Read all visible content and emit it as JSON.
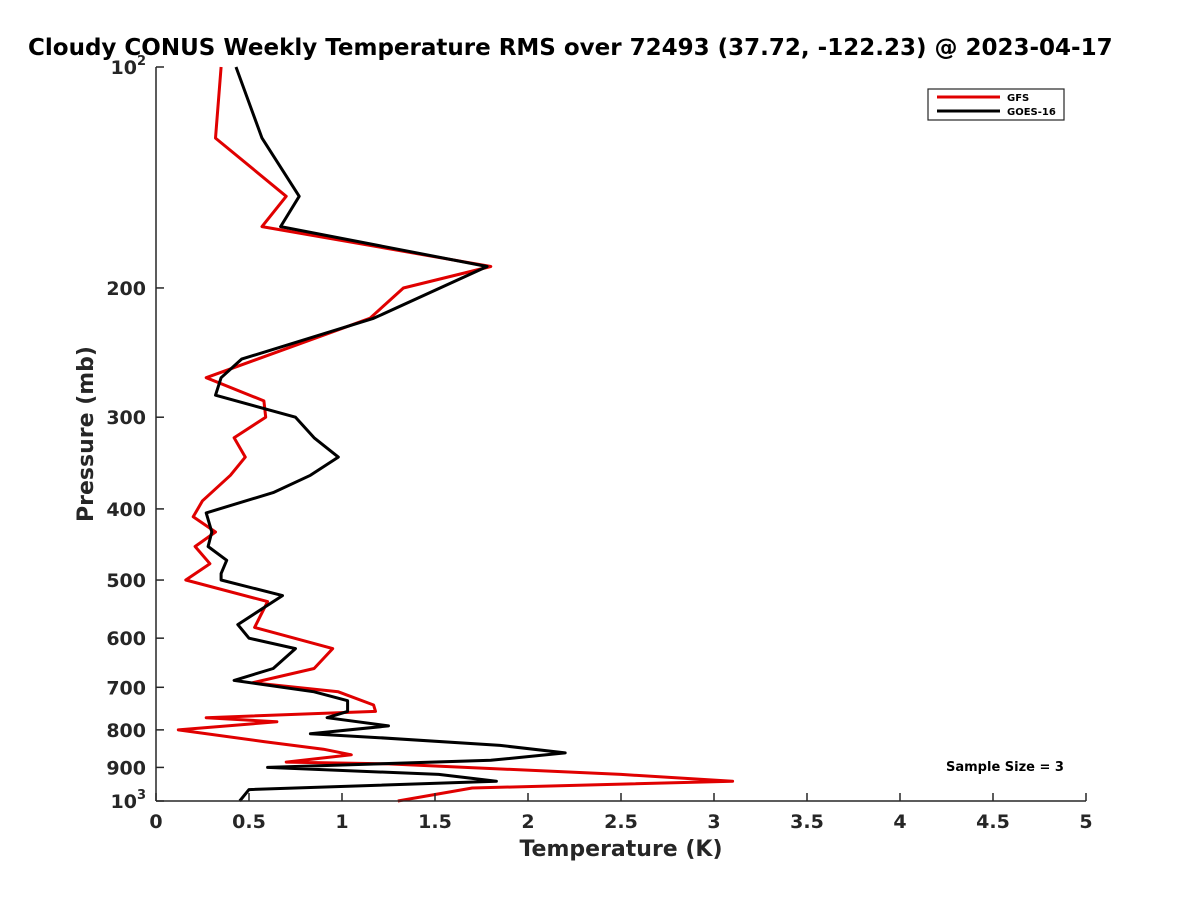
{
  "chart_data": {
    "type": "line",
    "title": "Cloudy CONUS Weekly Temperature RMS over 72493 (37.72, -122.23) @ 2023-04-17",
    "xlabel": "Temperature (K)",
    "ylabel": "Pressure (mb)",
    "xlim": [
      0,
      5
    ],
    "ylim": [
      100,
      1000
    ],
    "y_scale": "log",
    "y_reversed": true,
    "grid": false,
    "legend_position": "top-right",
    "x_ticks": [
      0,
      0.5,
      1,
      1.5,
      2,
      2.5,
      3,
      3.5,
      4,
      4.5,
      5
    ],
    "x_tick_labels": [
      "0",
      "0.5",
      "1",
      "1.5",
      "2",
      "2.5",
      "3",
      "3.5",
      "4",
      "4.5",
      "5"
    ],
    "y_ticks": [
      100,
      200,
      300,
      400,
      500,
      600,
      700,
      800,
      900,
      1000
    ],
    "y_tick_labels": [
      {
        "base": "10",
        "exp": "2"
      },
      {
        "base": "200"
      },
      {
        "base": "300"
      },
      {
        "base": "400"
      },
      {
        "base": "500"
      },
      {
        "base": "600"
      },
      {
        "base": "700"
      },
      {
        "base": "800"
      },
      {
        "base": "900"
      },
      {
        "base": "10",
        "exp": "3"
      }
    ],
    "annotation": "Sample Size = 3",
    "series": [
      {
        "name": "GFS",
        "color": "#e00000",
        "points": [
          {
            "x": 0.35,
            "p": 100
          },
          {
            "x": 0.32,
            "p": 125
          },
          {
            "x": 0.7,
            "p": 150
          },
          {
            "x": 0.57,
            "p": 165
          },
          {
            "x": 1.8,
            "p": 187
          },
          {
            "x": 1.33,
            "p": 200
          },
          {
            "x": 1.15,
            "p": 220
          },
          {
            "x": 0.27,
            "p": 265
          },
          {
            "x": 0.58,
            "p": 285
          },
          {
            "x": 0.59,
            "p": 300
          },
          {
            "x": 0.42,
            "p": 320
          },
          {
            "x": 0.48,
            "p": 340
          },
          {
            "x": 0.4,
            "p": 360
          },
          {
            "x": 0.25,
            "p": 390
          },
          {
            "x": 0.2,
            "p": 410
          },
          {
            "x": 0.32,
            "p": 430
          },
          {
            "x": 0.21,
            "p": 450
          },
          {
            "x": 0.29,
            "p": 475
          },
          {
            "x": 0.16,
            "p": 500
          },
          {
            "x": 0.6,
            "p": 535
          },
          {
            "x": 0.53,
            "p": 580
          },
          {
            "x": 0.95,
            "p": 620
          },
          {
            "x": 0.85,
            "p": 660
          },
          {
            "x": 0.52,
            "p": 690
          },
          {
            "x": 0.98,
            "p": 710
          },
          {
            "x": 1.17,
            "p": 740
          },
          {
            "x": 1.18,
            "p": 755
          },
          {
            "x": 0.27,
            "p": 770
          },
          {
            "x": 0.65,
            "p": 780
          },
          {
            "x": 0.12,
            "p": 800
          },
          {
            "x": 0.58,
            "p": 830
          },
          {
            "x": 0.9,
            "p": 850
          },
          {
            "x": 1.05,
            "p": 865
          },
          {
            "x": 0.7,
            "p": 885
          },
          {
            "x": 1.25,
            "p": 890
          },
          {
            "x": 2.5,
            "p": 920
          },
          {
            "x": 3.1,
            "p": 940
          },
          {
            "x": 2.4,
            "p": 950
          },
          {
            "x": 1.7,
            "p": 960
          },
          {
            "x": 1.3,
            "p": 1000
          }
        ]
      },
      {
        "name": "GOES-16",
        "color": "#000000",
        "points": [
          {
            "x": 0.43,
            "p": 100
          },
          {
            "x": 0.57,
            "p": 125
          },
          {
            "x": 0.77,
            "p": 150
          },
          {
            "x": 0.67,
            "p": 165
          },
          {
            "x": 1.78,
            "p": 187
          },
          {
            "x": 1.17,
            "p": 220
          },
          {
            "x": 0.46,
            "p": 250
          },
          {
            "x": 0.35,
            "p": 265
          },
          {
            "x": 0.32,
            "p": 280
          },
          {
            "x": 0.75,
            "p": 300
          },
          {
            "x": 0.85,
            "p": 320
          },
          {
            "x": 0.98,
            "p": 340
          },
          {
            "x": 0.83,
            "p": 360
          },
          {
            "x": 0.63,
            "p": 380
          },
          {
            "x": 0.27,
            "p": 405
          },
          {
            "x": 0.3,
            "p": 430
          },
          {
            "x": 0.28,
            "p": 450
          },
          {
            "x": 0.38,
            "p": 470
          },
          {
            "x": 0.35,
            "p": 490
          },
          {
            "x": 0.35,
            "p": 500
          },
          {
            "x": 0.68,
            "p": 525
          },
          {
            "x": 0.44,
            "p": 575
          },
          {
            "x": 0.5,
            "p": 600
          },
          {
            "x": 0.75,
            "p": 620
          },
          {
            "x": 0.63,
            "p": 660
          },
          {
            "x": 0.42,
            "p": 685
          },
          {
            "x": 0.85,
            "p": 710
          },
          {
            "x": 1.03,
            "p": 730
          },
          {
            "x": 1.03,
            "p": 755
          },
          {
            "x": 0.92,
            "p": 770
          },
          {
            "x": 1.25,
            "p": 790
          },
          {
            "x": 0.83,
            "p": 810
          },
          {
            "x": 1.2,
            "p": 820
          },
          {
            "x": 1.85,
            "p": 840
          },
          {
            "x": 2.2,
            "p": 860
          },
          {
            "x": 1.8,
            "p": 880
          },
          {
            "x": 0.6,
            "p": 900
          },
          {
            "x": 1.52,
            "p": 920
          },
          {
            "x": 1.83,
            "p": 940
          },
          {
            "x": 0.5,
            "p": 965
          },
          {
            "x": 0.45,
            "p": 1000
          }
        ]
      }
    ]
  }
}
